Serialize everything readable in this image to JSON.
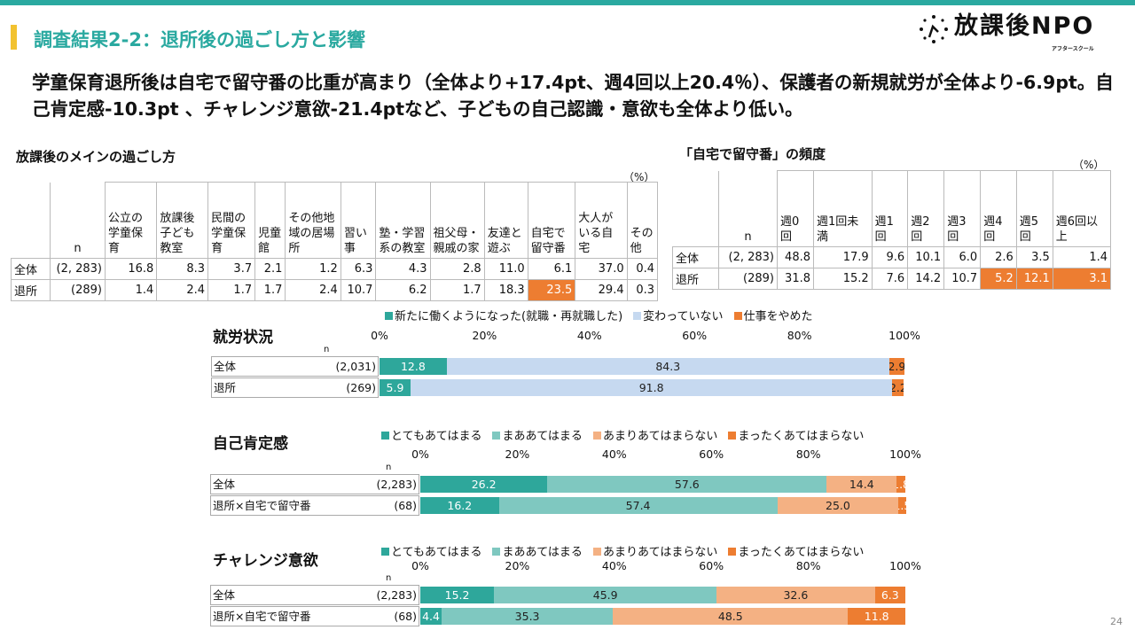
{
  "header": {
    "title": "調査結果2-2：退所後の過ごし方と影響",
    "logo_text": "放課後NPO",
    "logo_sub": "アフタースクール"
  },
  "headline": "学童保育退所後は自宅で留守番の比重が高まり（全体より+17.4pt、週4回以上20.4％）、保護者の新規就労が全体より-6.9pt。自己肯定感-10.3pt 、チャレンジ意欲-21.4ptなど、子どもの自己認識・意欲も全体より低い。",
  "table1": {
    "title": "放課後のメインの過ごし方",
    "unit": "（%）",
    "n_header": "n",
    "columns": [
      "公立の学童保育",
      "放課後子ども教室",
      "民間の学童保育",
      "児童館",
      "その他地域の居場所",
      "習い事",
      "塾・学習系の教室",
      "祖父母・親戚の家",
      "友達と遊ぶ",
      "自宅で留守番",
      "大人がいる自宅",
      "その他"
    ],
    "rows": [
      {
        "label": "全体",
        "n": "(2, 283)",
        "values": [
          "16.8",
          "8.3",
          "3.7",
          "2.1",
          "1.2",
          "6.3",
          "4.3",
          "2.8",
          "11.0",
          "6.1",
          "37.0",
          "0.4"
        ],
        "highlight": []
      },
      {
        "label": "退所",
        "n": "(289)",
        "values": [
          "1.4",
          "2.4",
          "1.7",
          "1.7",
          "2.4",
          "10.7",
          "6.2",
          "1.7",
          "18.3",
          "23.5",
          "29.4",
          "0.3"
        ],
        "highlight": [
          9
        ]
      }
    ]
  },
  "table2": {
    "title": "「自宅で留守番」の頻度",
    "unit": "（%）",
    "n_header": "n",
    "columns": [
      "週0回",
      "週1回未満",
      "週1回",
      "週2回",
      "週3回",
      "週4回",
      "週5回",
      "週6回以上"
    ],
    "rows": [
      {
        "label": "全体",
        "n": "(2, 283)",
        "values": [
          "48.8",
          "17.9",
          "9.6",
          "10.1",
          "6.0",
          "2.6",
          "3.5",
          "1.4"
        ],
        "highlight": []
      },
      {
        "label": "退所",
        "n": "(289)",
        "values": [
          "31.8",
          "15.2",
          "7.6",
          "14.2",
          "10.7",
          "5.2",
          "12.1",
          "3.1"
        ],
        "highlight": [
          5,
          6,
          7
        ]
      }
    ]
  },
  "chart_data": [
    {
      "type": "bar",
      "stacked": true,
      "orientation": "horizontal",
      "title": "就労状況",
      "n_label": "n",
      "xlim": [
        0,
        100
      ],
      "ticks": [
        "0%",
        "20%",
        "40%",
        "60%",
        "80%",
        "100%"
      ],
      "categories": [
        "全体",
        "退所"
      ],
      "n": [
        "(2,031)",
        "(269)"
      ],
      "series": [
        {
          "name": "新たに働くようになった(就職・再就職した)",
          "color": "#2ea79b",
          "values": [
            12.8,
            5.9
          ]
        },
        {
          "name": "変わっていない",
          "color": "#c6d9f0",
          "values": [
            84.3,
            91.8
          ]
        },
        {
          "name": "仕事をやめた",
          "color": "#ed7d31",
          "values": [
            2.9,
            2.2
          ]
        }
      ]
    },
    {
      "type": "bar",
      "stacked": true,
      "orientation": "horizontal",
      "title": "自己肯定感",
      "n_label": "n",
      "xlim": [
        0,
        100
      ],
      "ticks": [
        "0%",
        "20%",
        "40%",
        "60%",
        "80%",
        "100%"
      ],
      "categories": [
        "全体",
        "退所×自宅で留守番"
      ],
      "n": [
        "(2,283)",
        "(68)"
      ],
      "series": [
        {
          "name": "とてもあてはまる",
          "color": "#2ea79b",
          "values": [
            26.2,
            16.2
          ]
        },
        {
          "name": "まああてはまる",
          "color": "#7fc8c0",
          "values": [
            57.6,
            57.4
          ]
        },
        {
          "name": "あまりあてはまらない",
          "color": "#f4b183",
          "values": [
            14.4,
            25.0
          ]
        },
        {
          "name": "まったくあてはまらない",
          "color": "#ed7d31",
          "values": [
            1.8,
            1.5
          ]
        }
      ]
    },
    {
      "type": "bar",
      "stacked": true,
      "orientation": "horizontal",
      "title": "チャレンジ意欲",
      "n_label": "n",
      "xlim": [
        0,
        100
      ],
      "ticks": [
        "0%",
        "20%",
        "40%",
        "60%",
        "80%",
        "100%"
      ],
      "categories": [
        "全体",
        "退所×自宅で留守番"
      ],
      "n": [
        "(2,283)",
        "(68)"
      ],
      "series": [
        {
          "name": "とてもあてはまる",
          "color": "#2ea79b",
          "values": [
            15.2,
            4.4
          ]
        },
        {
          "name": "まああてはまる",
          "color": "#7fc8c0",
          "values": [
            45.9,
            35.3
          ]
        },
        {
          "name": "あまりあてはまらない",
          "color": "#f4b183",
          "values": [
            32.6,
            48.5
          ]
        },
        {
          "name": "まったくあてはまらない",
          "color": "#ed7d31",
          "values": [
            6.3,
            11.8
          ]
        }
      ]
    }
  ],
  "page_number": "24"
}
